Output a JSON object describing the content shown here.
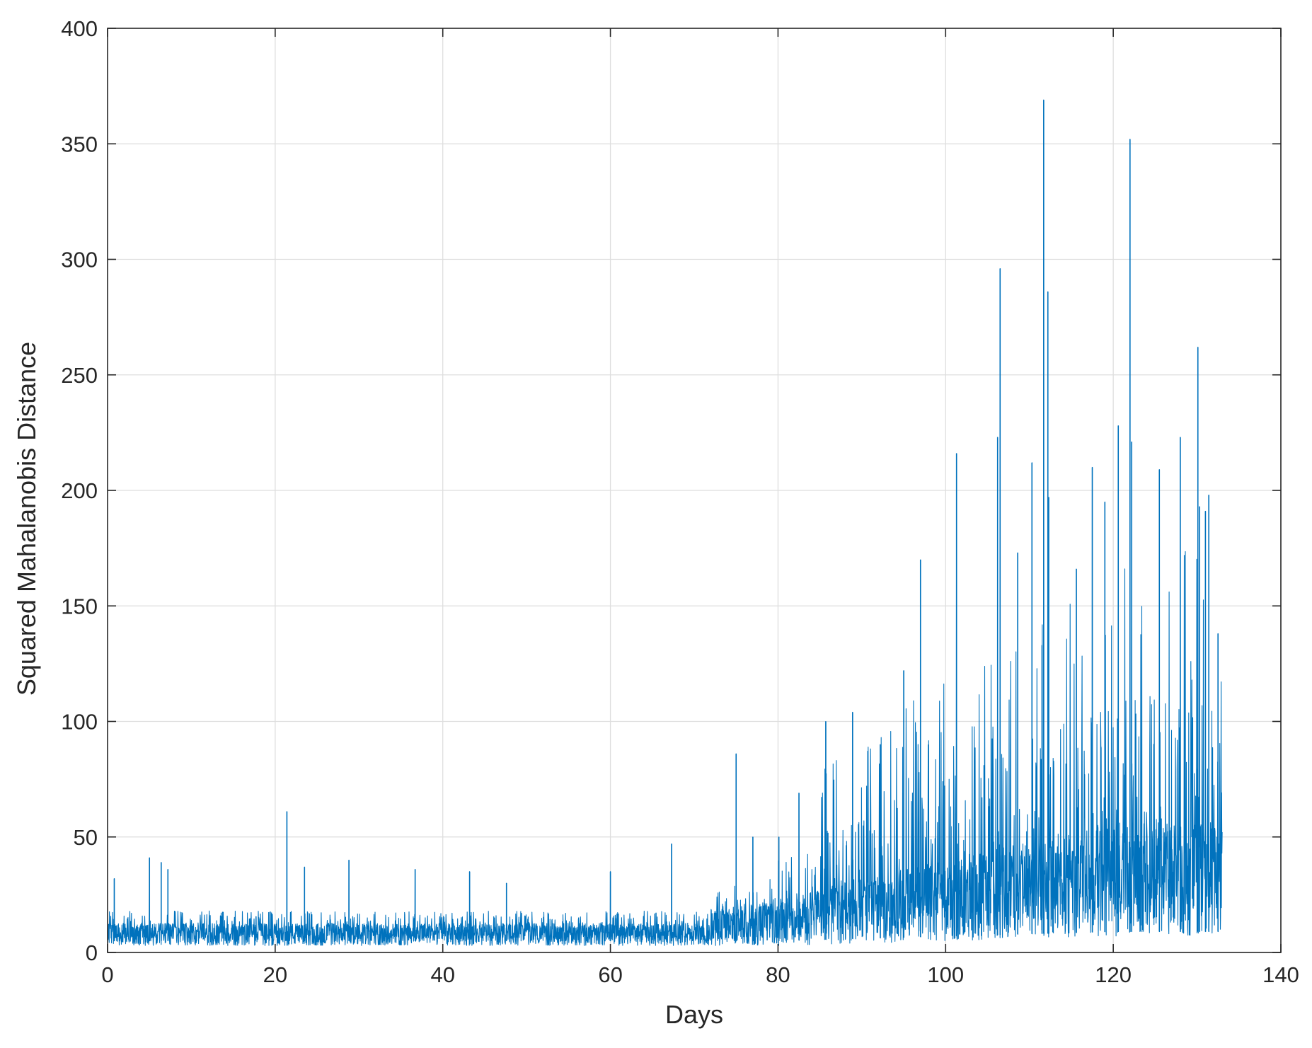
{
  "chart_data": {
    "type": "line",
    "title": "",
    "xlabel": "Days",
    "ylabel": "Squared Mahalanobis Distance",
    "xlim": [
      0,
      140
    ],
    "ylim": [
      0,
      400
    ],
    "xticks": [
      "0",
      "20",
      "40",
      "60",
      "80",
      "100",
      "120",
      "140"
    ],
    "yticks": [
      "0",
      "50",
      "100",
      "150",
      "200",
      "250",
      "300",
      "350",
      "400"
    ],
    "grid": true,
    "legend": "none",
    "line_color": "#0072BD",
    "data_x_range": [
      0,
      133
    ],
    "series": [
      {
        "x": [
          0.8,
          5.0,
          6.4,
          7.2,
          21.4,
          23.5,
          28.8,
          36.7,
          43.2,
          47.6,
          60.0,
          67.3,
          75.0,
          77.0,
          80.1,
          82.5,
          85.7,
          88.9,
          92.2,
          95.0,
          97.0,
          101.3,
          106.2,
          106.5,
          108.6,
          110.3,
          111.5,
          111.7,
          112.2,
          112.3,
          115.6,
          117.5,
          119.0,
          120.6,
          122.0,
          122.2,
          125.5,
          128.0,
          130.1,
          130.3,
          131.0,
          131.4,
          132.5
        ],
        "y": [
          32,
          41,
          39,
          36,
          61,
          37,
          40,
          36,
          35,
          30,
          35,
          47,
          86,
          50,
          50,
          69,
          100,
          104,
          90,
          122,
          170,
          216,
          223,
          296,
          173,
          212,
          133,
          369,
          286,
          197,
          166,
          210,
          195,
          228,
          352,
          221,
          209,
          223,
          262,
          193,
          191,
          198,
          138
        ]
      }
    ]
  }
}
